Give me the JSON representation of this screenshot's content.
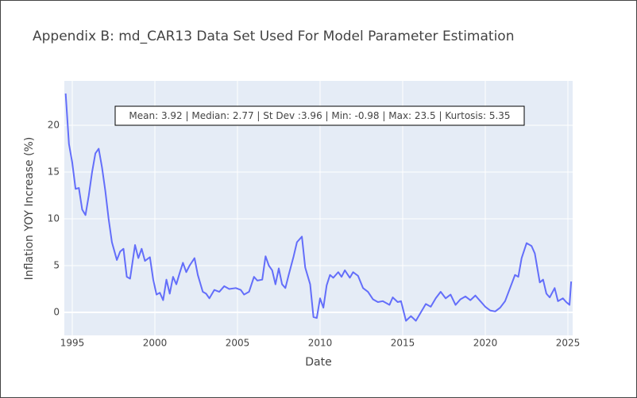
{
  "chart_data": {
    "type": "line",
    "title": "Appendix B: md_CAR13 Data Set Used For Model Parameter Estimation",
    "annotation": "Mean: 3.92 | Median: 2.77 | St Dev :3.96 | Min: -0.98 | Max: 23.5 | Kurtosis: 5.35",
    "x_label": "Date",
    "y_label": "Inflation YOY Increase (%)",
    "x": [
      1994.6,
      1994.8,
      1995.0,
      1995.2,
      1995.4,
      1995.6,
      1995.8,
      1996.0,
      1996.2,
      1996.4,
      1996.6,
      1996.8,
      1997.0,
      1997.2,
      1997.4,
      1997.7,
      1997.9,
      1998.1,
      1998.3,
      1998.5,
      1998.8,
      1999.0,
      1999.2,
      1999.4,
      1999.7,
      1999.9,
      2000.1,
      2000.3,
      2000.5,
      2000.7,
      2000.9,
      2001.1,
      2001.3,
      2001.5,
      2001.7,
      2001.9,
      2002.1,
      2002.4,
      2002.6,
      2002.9,
      2003.1,
      2003.3,
      2003.6,
      2003.9,
      2004.2,
      2004.5,
      2004.9,
      2005.2,
      2005.4,
      2005.7,
      2006.0,
      2006.2,
      2006.5,
      2006.7,
      2006.9,
      2007.1,
      2007.3,
      2007.5,
      2007.7,
      2007.9,
      2008.1,
      2008.4,
      2008.6,
      2008.9,
      2009.1,
      2009.4,
      2009.6,
      2009.8,
      2010.0,
      2010.2,
      2010.4,
      2010.6,
      2010.8,
      2011.1,
      2011.3,
      2011.5,
      2011.8,
      2012.0,
      2012.3,
      2012.6,
      2012.9,
      2013.2,
      2013.5,
      2013.8,
      2014.2,
      2014.4,
      2014.7,
      2014.9,
      2015.2,
      2015.5,
      2015.8,
      2016.1,
      2016.4,
      2016.7,
      2017.0,
      2017.3,
      2017.6,
      2017.9,
      2018.2,
      2018.5,
      2018.8,
      2019.1,
      2019.4,
      2019.7,
      2020.0,
      2020.3,
      2020.6,
      2020.9,
      2021.2,
      2021.5,
      2021.8,
      2022.0,
      2022.2,
      2022.5,
      2022.8,
      2023.0,
      2023.3,
      2023.5,
      2023.7,
      2023.9,
      2024.2,
      2024.4,
      2024.7,
      2024.9,
      2025.1,
      2025.2
    ],
    "series": [
      {
        "color": "#636efa",
        "values": [
          23.4,
          18,
          16,
          13.2,
          13.3,
          11,
          10.4,
          12.5,
          15,
          17,
          17.5,
          15.5,
          13,
          10,
          7.5,
          5.6,
          6.5,
          6.8,
          3.8,
          3.6,
          7.2,
          5.8,
          6.8,
          5.5,
          5.9,
          3.5,
          1.9,
          2.1,
          1.3,
          3.5,
          2,
          3.8,
          3,
          4.2,
          5.3,
          4.3,
          5,
          5.8,
          4,
          2.2,
          2,
          1.5,
          2.4,
          2.2,
          2.8,
          2.5,
          2.6,
          2.4,
          1.9,
          2.2,
          3.8,
          3.4,
          3.5,
          6,
          5,
          4.5,
          3,
          4.7,
          3,
          2.6,
          4,
          6,
          7.5,
          8.1,
          4.8,
          3,
          -0.5,
          -0.6,
          1.5,
          0.5,
          2.9,
          4,
          3.7,
          4.3,
          3.8,
          4.5,
          3.7,
          4.3,
          3.9,
          2.6,
          2.2,
          1.4,
          1.1,
          1.2,
          0.8,
          1.6,
          1.1,
          1.2,
          -0.9,
          -0.4,
          -0.9,
          0,
          0.9,
          0.6,
          1.5,
          2.2,
          1.5,
          1.9,
          0.8,
          1.4,
          1.7,
          1.3,
          1.8,
          1.2,
          0.6,
          0.2,
          0.1,
          0.5,
          1.2,
          2.6,
          4,
          3.8,
          5.8,
          7.4,
          7.1,
          6.3,
          3.2,
          3.5,
          2,
          1.6,
          2.6,
          1.2,
          1.5,
          1.1,
          0.8,
          3.3
        ]
      }
    ],
    "xlim": [
      1994.52,
      2025.29
    ],
    "xticks": [
      1995,
      2000,
      2005,
      2010,
      2015,
      2020,
      2025
    ],
    "ylim": [
      -2.46,
      24.75
    ],
    "yticks": [
      0,
      5,
      10,
      15,
      20
    ],
    "grid": true,
    "plot_bg": "#e5ecf6"
  }
}
